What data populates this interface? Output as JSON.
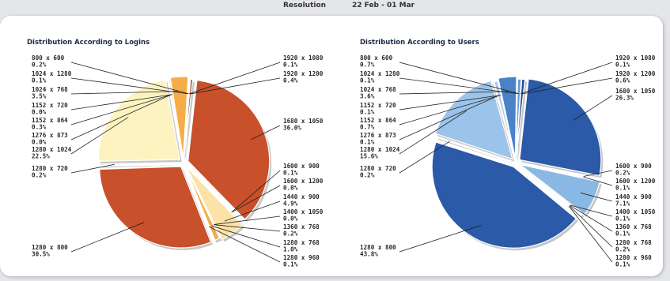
{
  "header": {
    "resolution_label": "Resolution",
    "date_range": "22 Feb - 01 Mar"
  },
  "chart_data": [
    {
      "type": "pie",
      "title": "Distribution According to Logins",
      "slices": [
        {
          "label": "1680 x 1050",
          "value": 36.0,
          "display": "36.0%",
          "color": "#c8502a"
        },
        {
          "label": "1600 x 900",
          "value": 0.1,
          "display": "0.1%",
          "color": "#e8a04a"
        },
        {
          "label": "1600 x 1200",
          "value": 0.0,
          "display": "0.0%",
          "color": "#f0c080"
        },
        {
          "label": "1440 x 900",
          "value": 4.9,
          "display": "4.9%",
          "color": "#fbe2a6"
        },
        {
          "label": "1400 x 1050",
          "value": 0.0,
          "display": "0.0%",
          "color": "#f3d08a"
        },
        {
          "label": "1360 x 768",
          "value": 0.2,
          "display": "0.2%",
          "color": "#e6a04a"
        },
        {
          "label": "1280 x 768",
          "value": 1.0,
          "display": "1.0%",
          "color": "#f2ae48"
        },
        {
          "label": "1280 x 960",
          "value": 0.1,
          "display": "0.1%",
          "color": "#e89a3c"
        },
        {
          "label": "1280 x 800",
          "value": 30.5,
          "display": "30.5%",
          "color": "#c8502a"
        },
        {
          "label": "1280 x 720",
          "value": 0.2,
          "display": "0.2%",
          "color": "#d97a3a"
        },
        {
          "label": "1280 x 1024",
          "value": 22.5,
          "display": "22.5%",
          "color": "#fdf3c0"
        },
        {
          "label": "1276 x 873",
          "value": 0.0,
          "display": "0.0%",
          "color": "#f7e4a8"
        },
        {
          "label": "1152 x 864",
          "value": 0.3,
          "display": "0.3%",
          "color": "#f5d690"
        },
        {
          "label": "1152 x 720",
          "value": 0.0,
          "display": "0.0%",
          "color": "#f2c878"
        },
        {
          "label": "1024 x 768",
          "value": 3.5,
          "display": "3.5%",
          "color": "#f6ad48"
        },
        {
          "label": "1024 x 1280",
          "value": 0.1,
          "display": "0.1%",
          "color": "#e89638"
        },
        {
          "label": "800 x 600",
          "value": 0.2,
          "display": "0.2%",
          "color": "#dc8030"
        },
        {
          "label": "1920 x 1080",
          "value": 0.1,
          "display": "0.1%",
          "color": "#b8552a"
        },
        {
          "label": "1920 x 1200",
          "value": 0.4,
          "display": "0.4%",
          "color": "#9a3a1c"
        }
      ]
    },
    {
      "type": "pie",
      "title": "Distribution According to Users",
      "slices": [
        {
          "label": "1680 x 1050",
          "value": 26.3,
          "display": "26.3%",
          "color": "#2a5aa8"
        },
        {
          "label": "1600 x 900",
          "value": 0.2,
          "display": "0.2%",
          "color": "#5a86c8"
        },
        {
          "label": "1600 x 1200",
          "value": 0.1,
          "display": "0.1%",
          "color": "#7aa2d8"
        },
        {
          "label": "1440 x 900",
          "value": 7.1,
          "display": "7.1%",
          "color": "#8ab8e4"
        },
        {
          "label": "1400 x 1050",
          "value": 0.1,
          "display": "0.1%",
          "color": "#6a92cc"
        },
        {
          "label": "1360 x 768",
          "value": 0.1,
          "display": "0.1%",
          "color": "#4a78bc"
        },
        {
          "label": "1280 x 768",
          "value": 0.2,
          "display": "0.2%",
          "color": "#3c6cb4"
        },
        {
          "label": "1280 x 960",
          "value": 0.1,
          "display": "0.1%",
          "color": "#3464b0"
        },
        {
          "label": "1280 x 800",
          "value": 43.8,
          "display": "43.8%",
          "color": "#2a5aa8"
        },
        {
          "label": "1280 x 720",
          "value": 0.2,
          "display": "0.2%",
          "color": "#5a86c8"
        },
        {
          "label": "1280 x 1024",
          "value": 15.6,
          "display": "15.6%",
          "color": "#9cc4ea"
        },
        {
          "label": "1276 x 873",
          "value": 0.1,
          "display": "0.1%",
          "color": "#b2d0ee"
        },
        {
          "label": "1152 x 864",
          "value": 0.7,
          "display": "0.7%",
          "color": "#a8c8ea"
        },
        {
          "label": "1152 x 720",
          "value": 0.1,
          "display": "0.1%",
          "color": "#9cbfe6"
        },
        {
          "label": "1024 x 768",
          "value": 3.6,
          "display": "3.6%",
          "color": "#4a82c8"
        },
        {
          "label": "1024 x 1280",
          "value": 0.1,
          "display": "0.1%",
          "color": "#3a72bc"
        },
        {
          "label": "800 x 600",
          "value": 0.7,
          "display": "0.7%",
          "color": "#6e98d0"
        },
        {
          "label": "1920 x 1080",
          "value": 0.1,
          "display": "0.1%",
          "color": "#2a5aa8"
        },
        {
          "label": "1920 x 1200",
          "value": 0.6,
          "display": "0.6%",
          "color": "#1e4a94"
        }
      ]
    }
  ]
}
